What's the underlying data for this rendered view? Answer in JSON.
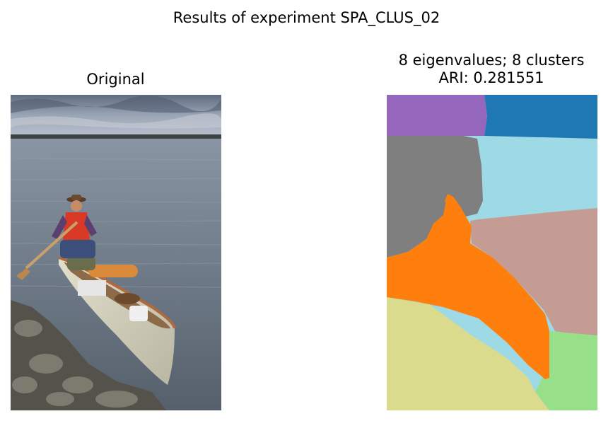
{
  "figure": {
    "suptitle": "Results of experiment SPA_CLUS_02"
  },
  "panels": [
    {
      "title": "Original",
      "content": "photo",
      "scene": {
        "sky": "#8a96a8",
        "water": "#6d7887",
        "treeline": "#3c4340",
        "rocks": "#5a574f",
        "canoe_hull": "#d6d3c0",
        "canoe_trim": "#b36a3a",
        "vest": "#d83a25",
        "hat": "#6b4a2e"
      }
    },
    {
      "title_lines": [
        "8 eigenvalues; 8 clusters",
        "ARI: 0.281551"
      ],
      "content": "segmentation",
      "n_eigenvalues": 8,
      "n_clusters": 8,
      "ari": 0.281551,
      "cluster_colors": {
        "purple": "#9467bd",
        "blue": "#1f77b4",
        "gray": "#7f7f7f",
        "cyan": "#9edae5",
        "pink": "#c49c94",
        "orange": "#ff7f0e",
        "olive": "#dbdb8d",
        "green": "#98df8a"
      }
    }
  ]
}
